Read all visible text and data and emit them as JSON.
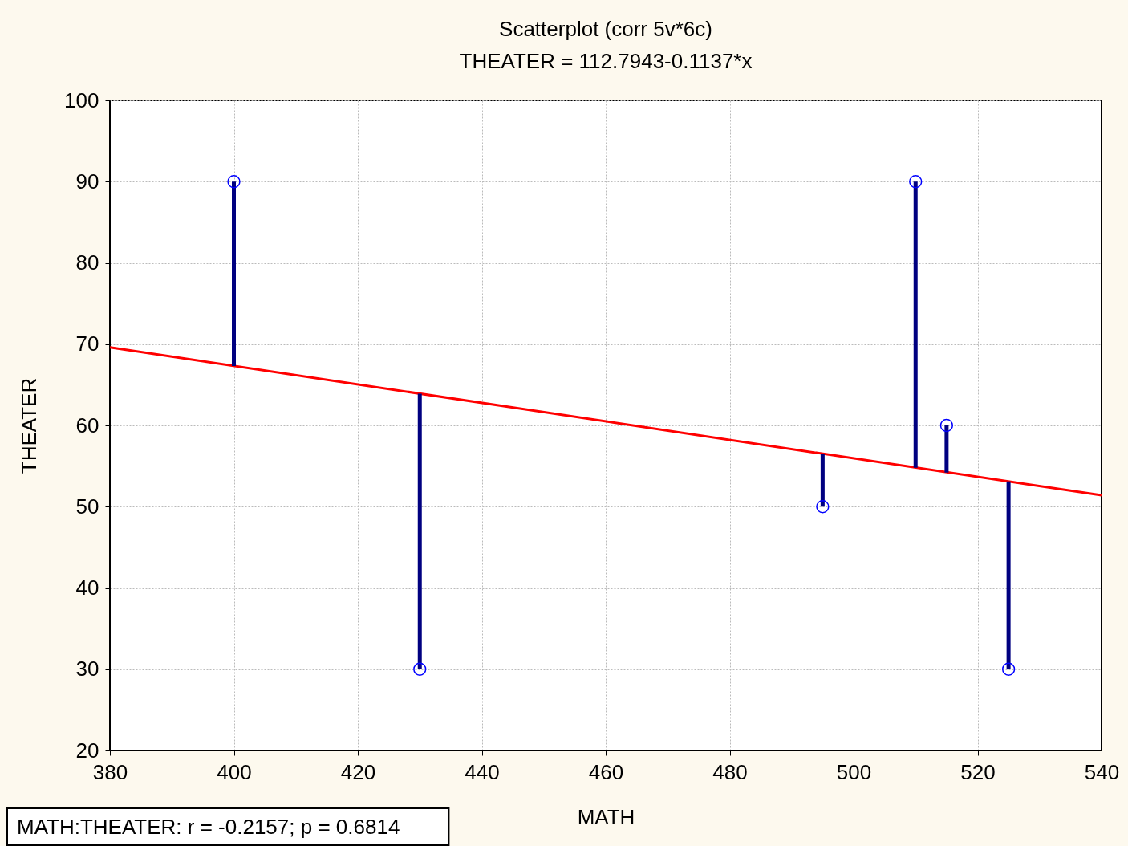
{
  "chart_data": {
    "type": "scatter",
    "title": "Scatterplot (corr 5v*6c)",
    "subtitle": "THEATER = 112.7943-0.1137*x",
    "xlabel": "MATH",
    "ylabel": "THEATER",
    "annotations": [
      "MATH:THEATER:   r = -0.2157; p = 0.6814"
    ],
    "series": [
      {
        "type": "line",
        "color": "#ff0000",
        "x": [
          380,
          540
        ],
        "values": [
          69.6,
          51.4
        ]
      },
      {
        "type": "bar",
        "color": "#000080",
        "x": [
          400,
          430,
          495,
          510,
          515,
          525
        ],
        "base": [
          67.3,
          63.9,
          56.5,
          54.8,
          54.2,
          53.1
        ],
        "values": [
          22.7,
          -33.9,
          -6.5,
          35.2,
          5.8,
          -23.1
        ]
      },
      {
        "color": "#0000ff",
        "marker": "circle",
        "x": [
          400,
          430,
          495,
          510,
          515,
          525
        ],
        "values": [
          90,
          30,
          50,
          90,
          60,
          30
        ]
      }
    ],
    "xlim": [
      380,
      540
    ],
    "xticks": [
      380,
      400,
      420,
      440,
      460,
      480,
      500,
      520,
      540
    ],
    "ylim": [
      20,
      100
    ],
    "yticks": [
      20,
      30,
      40,
      50,
      60,
      70,
      80,
      90,
      100
    ],
    "grid": true
  }
}
